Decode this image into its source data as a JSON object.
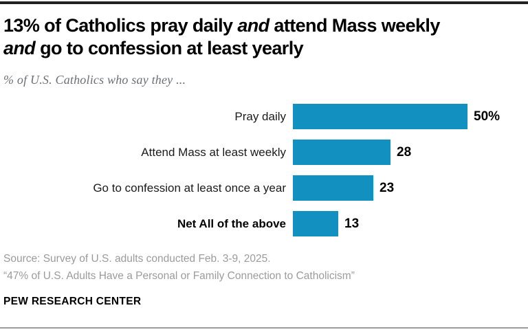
{
  "page": {
    "title": {
      "line1_part1": "13% of Catholics pray daily ",
      "line1_italic": "and",
      "line1_part2": " attend Mass weekly",
      "line2_italic": "and",
      "line2_part2": " go to confession at least yearly"
    },
    "subtitle": "% of U.S. Catholics who say they ...",
    "source_line1": "Source: Survey of U.S. adults conducted Feb. 3-9, 2025.",
    "source_line2": "“47% of U.S. Adults Have a Personal or Family Connection to Catholicism”",
    "brand": "PEW RESEARCH CENTER",
    "colors": {
      "top_rule": "#222222",
      "bottom_rule": "#9c9c9c"
    }
  },
  "chart_data": {
    "type": "bar",
    "orientation": "horizontal",
    "title": "13% of Catholics pray daily and attend Mass weekly and go to confession at least yearly",
    "subtitle": "% of U.S. Catholics who say they ...",
    "categories": [
      "Pray daily",
      "Attend Mass at least weekly",
      "Go to confession at least once a year",
      "Net All of the above"
    ],
    "values": [
      50,
      28,
      23,
      13
    ],
    "value_labels": [
      "50%",
      "28",
      "23",
      "13"
    ],
    "xlim": [
      0,
      55
    ],
    "bar_color": "#1291c1",
    "grid": false,
    "legend": false
  }
}
